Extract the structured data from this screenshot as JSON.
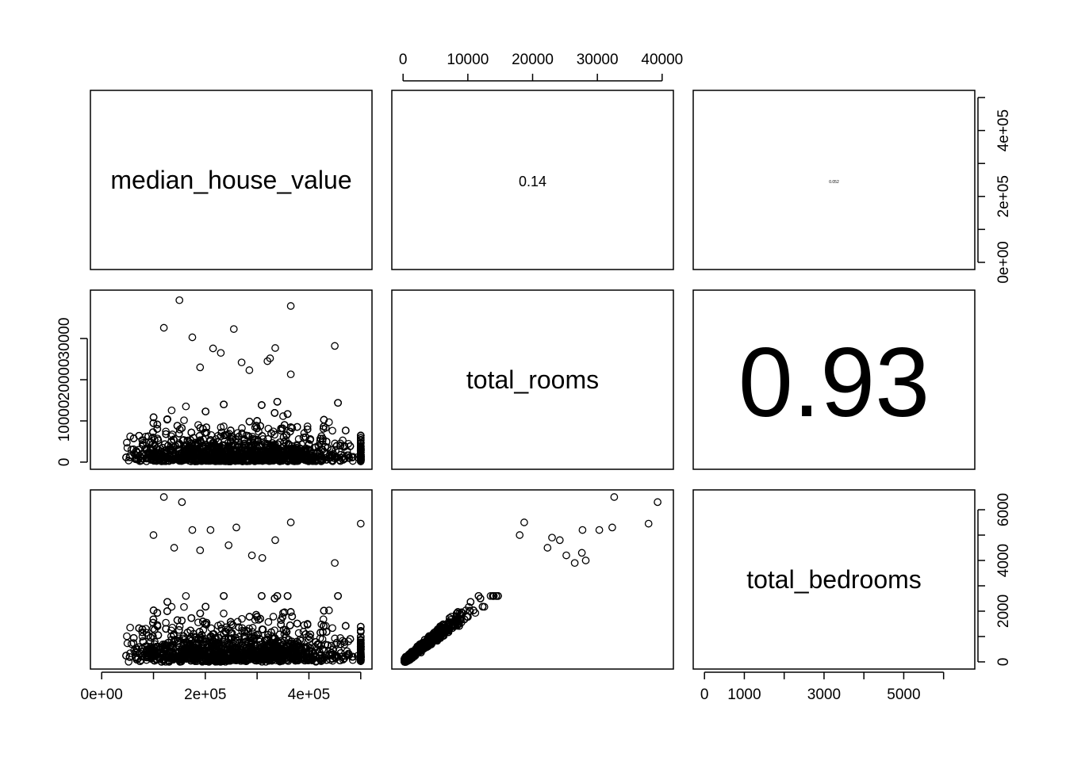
{
  "chart_data": {
    "type": "scatter-matrix",
    "variables": [
      "median_house_value",
      "total_rooms",
      "total_bedrooms"
    ],
    "correlations": [
      {
        "row": 0,
        "col": 1,
        "label": "0.14",
        "value": 0.14
      },
      {
        "row": 0,
        "col": 2,
        "label": "0.052",
        "value": 0.052
      },
      {
        "row": 1,
        "col": 2,
        "label": "0.93",
        "value": 0.93
      }
    ],
    "axes": {
      "median_house_value": {
        "range": [
          0,
          500001
        ],
        "ticks": [
          0,
          100000,
          200000,
          300000,
          400000,
          500000
        ],
        "tick_labels": [
          "0e+00",
          "",
          "2e+05",
          "",
          "4e+05",
          ""
        ]
      },
      "total_rooms": {
        "range": [
          0,
          40000
        ],
        "ticks_top": [
          0,
          10000,
          20000,
          30000,
          40000
        ],
        "tick_labels_top": [
          "0",
          "10000",
          "20000",
          "30000",
          "40000"
        ],
        "ticks_left": [
          0,
          10000,
          20000,
          30000
        ],
        "tick_labels_left": [
          "0",
          "10000",
          "20000",
          "30000"
        ]
      },
      "total_bedrooms": {
        "range": [
          0,
          6500
        ],
        "ticks_bottom": [
          0,
          1000,
          2000,
          3000,
          4000,
          5000,
          6000
        ],
        "tick_labels_bottom": [
          "0",
          "1000",
          "",
          "3000",
          "",
          "5000",
          ""
        ],
        "ticks_right": [
          0,
          1000,
          2000,
          3000,
          4000,
          5000,
          6000
        ],
        "tick_labels_right": [
          "0",
          "",
          "2000",
          "",
          "4000",
          "",
          "6000"
        ]
      }
    },
    "scatter_outliers": {
      "value_vs_rooms": [
        [
          150000,
          39300
        ],
        [
          365000,
          37900
        ],
        [
          120000,
          32600
        ],
        [
          255000,
          32300
        ],
        [
          175000,
          30300
        ],
        [
          335000,
          27700
        ],
        [
          215000,
          27600
        ],
        [
          450000,
          28200
        ],
        [
          325000,
          25200
        ],
        [
          230000,
          26500
        ],
        [
          270000,
          24200
        ],
        [
          190000,
          23000
        ],
        [
          365000,
          21300
        ],
        [
          285000,
          22300
        ],
        [
          320000,
          24500
        ]
      ],
      "value_vs_bedrooms": [
        [
          120000,
          6500
        ],
        [
          155000,
          6300
        ],
        [
          365000,
          5500
        ],
        [
          500000,
          5450
        ],
        [
          260000,
          5300
        ],
        [
          175000,
          5200
        ],
        [
          210000,
          5200
        ],
        [
          100000,
          5000
        ],
        [
          335000,
          4800
        ],
        [
          450000,
          3900
        ],
        [
          245000,
          4600
        ],
        [
          140000,
          4500
        ],
        [
          290000,
          4200
        ],
        [
          190000,
          4400
        ],
        [
          310000,
          4100
        ]
      ],
      "rooms_vs_bedrooms": [
        [
          32600,
          6500
        ],
        [
          39300,
          6300
        ],
        [
          37900,
          5450
        ],
        [
          32300,
          5300
        ],
        [
          27700,
          5200
        ],
        [
          30300,
          5200
        ],
        [
          18700,
          5500
        ],
        [
          18000,
          5000
        ],
        [
          23000,
          4900
        ],
        [
          24200,
          4800
        ],
        [
          27600,
          4300
        ],
        [
          25200,
          4200
        ],
        [
          28200,
          4000
        ],
        [
          26500,
          3900
        ],
        [
          22300,
          4500
        ]
      ]
    }
  }
}
